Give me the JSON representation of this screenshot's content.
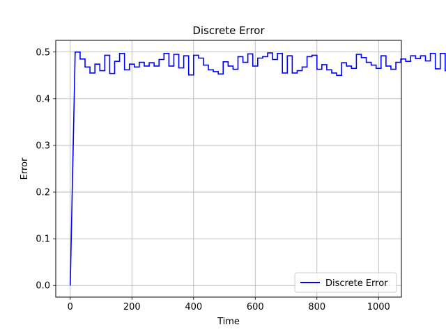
{
  "chart_data": {
    "type": "line",
    "title": "Discrete Error",
    "xlabel": "Time",
    "ylabel": "Error",
    "xlim": [
      -47,
      1074
    ],
    "ylim": [
      -0.025,
      0.525
    ],
    "xticks": [
      0,
      200,
      400,
      600,
      800,
      1000
    ],
    "yticks": [
      0.0,
      0.1,
      0.2,
      0.3,
      0.4,
      0.5
    ],
    "xtick_labels": [
      "0",
      "200",
      "400",
      "600",
      "800",
      "1000"
    ],
    "ytick_labels": [
      "0.0",
      "0.1",
      "0.2",
      "0.3",
      "0.4",
      "0.5"
    ],
    "grid": true,
    "legend_position": "lower-right",
    "step_width": 16,
    "series": [
      {
        "name": "Discrete Error",
        "color": "#0000ff",
        "x_start": 0,
        "values": [
          0.0,
          0.5,
          0.485,
          0.468,
          0.455,
          0.474,
          0.46,
          0.493,
          0.454,
          0.48,
          0.497,
          0.462,
          0.474,
          0.468,
          0.478,
          0.47,
          0.477,
          0.47,
          0.484,
          0.497,
          0.47,
          0.495,
          0.466,
          0.492,
          0.451,
          0.493,
          0.487,
          0.472,
          0.462,
          0.458,
          0.453,
          0.479,
          0.47,
          0.463,
          0.49,
          0.478,
          0.496,
          0.47,
          0.487,
          0.49,
          0.498,
          0.484,
          0.497,
          0.455,
          0.492,
          0.455,
          0.46,
          0.468,
          0.49,
          0.493,
          0.463,
          0.473,
          0.462,
          0.455,
          0.45,
          0.477,
          0.47,
          0.465,
          0.495,
          0.488,
          0.478,
          0.472,
          0.465,
          0.492,
          0.47,
          0.463,
          0.478,
          0.485,
          0.48,
          0.492,
          0.486,
          0.492,
          0.481,
          0.497,
          0.464,
          0.497,
          0.46,
          0.461,
          0.476,
          0.462,
          0.47,
          0.463,
          0.497,
          0.463,
          0.47,
          0.485,
          0.478,
          0.472,
          0.465,
          0.456,
          0.47,
          0.485,
          0.478,
          0.498,
          0.488,
          0.488
        ]
      }
    ]
  }
}
